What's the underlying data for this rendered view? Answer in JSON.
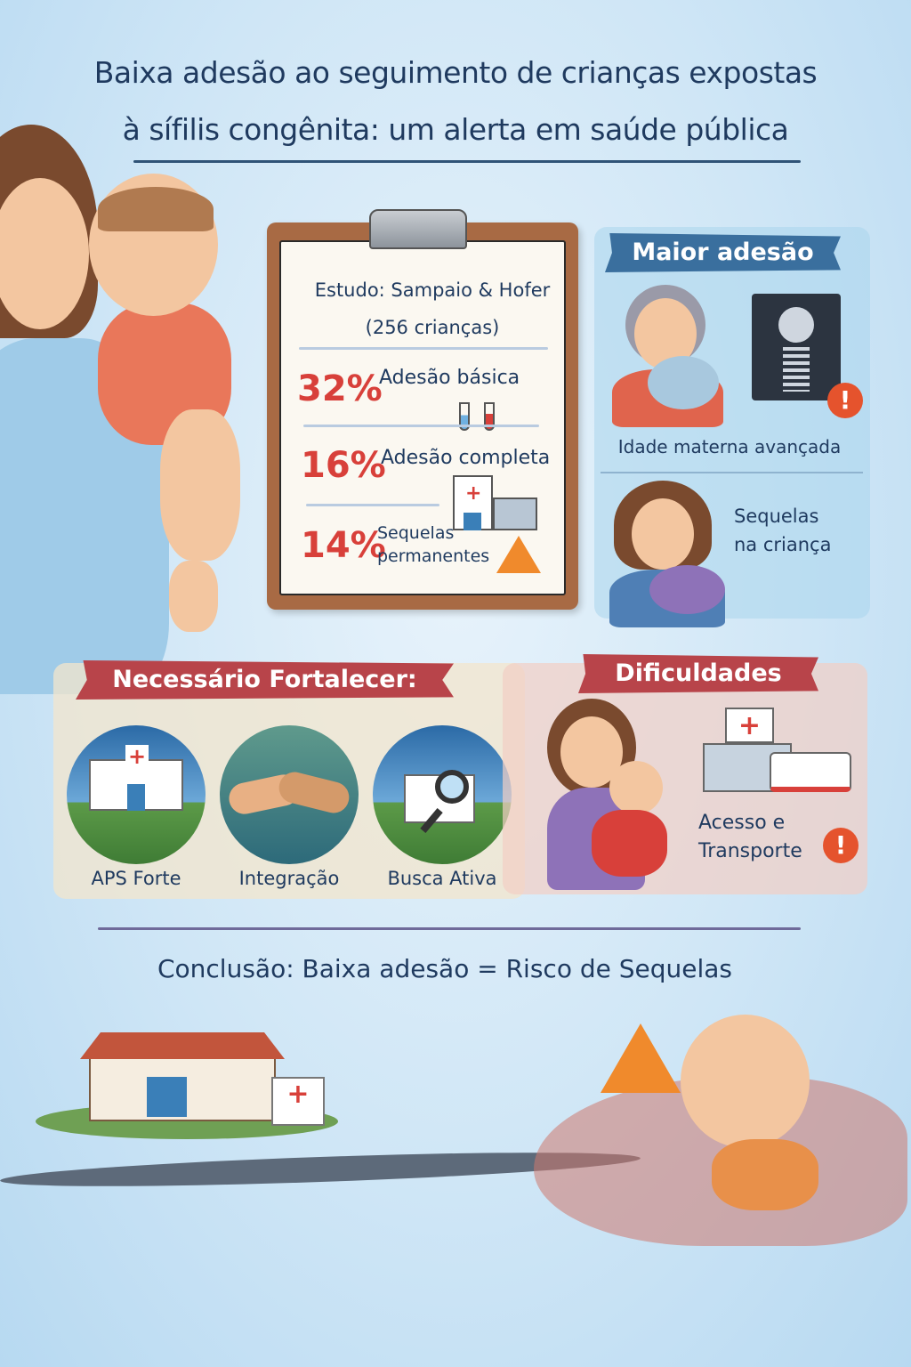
{
  "title": {
    "line1": "Baixa adesão ao seguimento de crianças expostas",
    "line2": "à sífilis congênita: um alerta em saúde pública"
  },
  "study": {
    "heading": "Estudo: Sampaio & Hofer",
    "sample": "(256 crianças)",
    "stats": [
      {
        "value": "32%",
        "label": "Adesão básica"
      },
      {
        "value": "16%",
        "label": "Adesão completa"
      },
      {
        "value": "14%",
        "label_line1": "Sequelas",
        "label_line2": "permanentes"
      }
    ]
  },
  "maior_adesao": {
    "title": "Maior adesão",
    "items": [
      {
        "label": "Idade materna avançada"
      },
      {
        "label_line1": "Sequelas",
        "label_line2": "na criança"
      }
    ]
  },
  "fortalecer": {
    "title": "Necessário Fortalecer:",
    "items": [
      {
        "label": "APS Forte",
        "icon": "clinic-icon"
      },
      {
        "label": "Integração",
        "icon": "handshake-icon"
      },
      {
        "label": "Busca Ativa",
        "icon": "house-search-icon"
      }
    ]
  },
  "dificuldades": {
    "title": "Dificuldades",
    "label_line1": "Acesso e",
    "label_line2": "Transporte",
    "alert": "!"
  },
  "conclusion": "Conclusão: Baixa adesão = Risco de Sequelas",
  "colors": {
    "accent_red": "#d8403a",
    "navy": "#1f3a5f",
    "banner_blue": "#3a6f9e",
    "banner_red": "#b8444a",
    "alert_orange": "#e5532d"
  }
}
